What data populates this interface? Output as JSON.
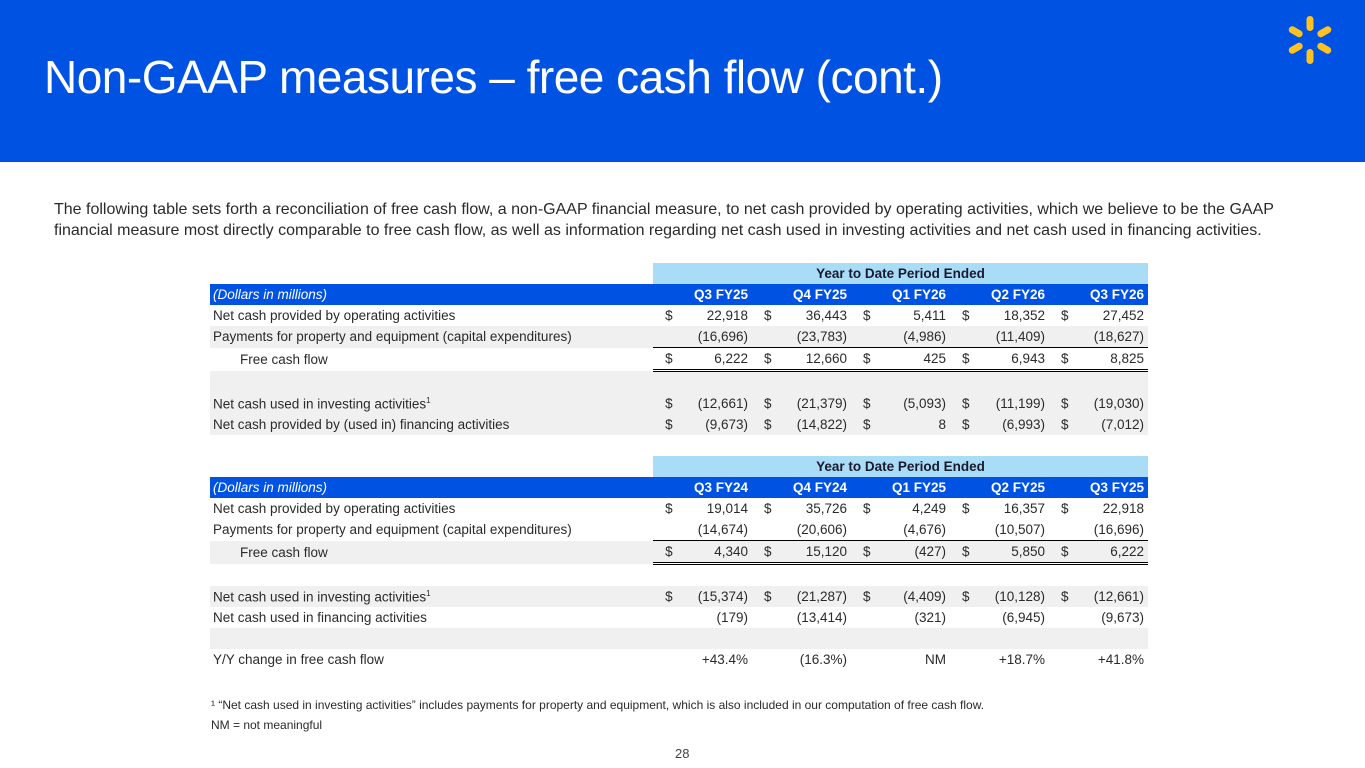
{
  "title": "Non-GAAP measures – free cash flow (cont.)",
  "intro": "The following table sets forth a reconciliation of free cash flow, a non-GAAP financial measure, to net cash provided by operating activities, which we believe to be the GAAP financial measure most directly comparable to free cash flow, as well as information regarding net cash used in investing activities and net cash used in financing activities.",
  "brand_color": "#0053e2",
  "logo": "walmart-spark-icon",
  "table1": {
    "period_header": "Year to Date Period Ended",
    "units": "(Dollars in millions)",
    "columns": [
      "Q3 FY25",
      "Q4 FY25",
      "Q1 FY26",
      "Q2 FY26",
      "Q3 FY26"
    ],
    "rows": [
      {
        "label": "Net cash provided by operating activities",
        "dollar": true,
        "values": [
          "22,918",
          "36,443",
          "5,411",
          "18,352",
          "27,452"
        ]
      },
      {
        "label": "Payments for property and equipment (capital expenditures)",
        "dollar": false,
        "values": [
          "(16,696)",
          "(23,783)",
          "(4,986)",
          "(11,409)",
          "(18,627)"
        ]
      },
      {
        "label": "Free cash flow",
        "dollar": true,
        "values": [
          "6,222",
          "12,660",
          "425",
          "6,943",
          "8,825"
        ]
      },
      {
        "label": "Net cash used in investing activities",
        "sup": "1",
        "dollar": true,
        "values": [
          "(12,661)",
          "(21,379)",
          "(5,093)",
          "(11,199)",
          "(19,030)"
        ]
      },
      {
        "label": "Net cash provided by (used in) financing activities",
        "dollar": true,
        "values": [
          "(9,673)",
          "(14,822)",
          "8",
          "(6,993)",
          "(7,012)"
        ]
      }
    ]
  },
  "table2": {
    "period_header": "Year to Date Period Ended",
    "units": "(Dollars in millions)",
    "columns": [
      "Q3 FY24",
      "Q4 FY24",
      "Q1 FY25",
      "Q2 FY25",
      "Q3 FY25"
    ],
    "rows": [
      {
        "label": "Net cash provided by operating activities",
        "dollar": true,
        "values": [
          "19,014",
          "35,726",
          "4,249",
          "16,357",
          "22,918"
        ]
      },
      {
        "label": "Payments for property and equipment (capital expenditures)",
        "dollar": false,
        "values": [
          "(14,674)",
          "(20,606)",
          "(4,676)",
          "(10,507)",
          "(16,696)"
        ]
      },
      {
        "label": "Free cash flow",
        "dollar": true,
        "values": [
          "4,340",
          "15,120",
          "(427)",
          "5,850",
          "6,222"
        ]
      },
      {
        "label": "Net cash used in investing activities",
        "sup": "1",
        "dollar": true,
        "values": [
          "(15,374)",
          "(21,287)",
          "(4,409)",
          "(10,128)",
          "(12,661)"
        ]
      },
      {
        "label": "Net cash used in financing activities",
        "dollar": false,
        "values": [
          "(179)",
          "(13,414)",
          "(321)",
          "(6,945)",
          "(9,673)"
        ]
      },
      {
        "label": "Y/Y change in free cash flow",
        "dollar": false,
        "values": [
          "+43.4%",
          "(16.3%)",
          "NM",
          "+18.7%",
          "+41.8%"
        ]
      }
    ]
  },
  "footnote1": "¹ “Net cash used in investing activities” includes payments for property and equipment, which is also included in our computation of free cash flow.",
  "footnote2": "NM = not meaningful",
  "page_number": "28",
  "currency_symbol": "$"
}
